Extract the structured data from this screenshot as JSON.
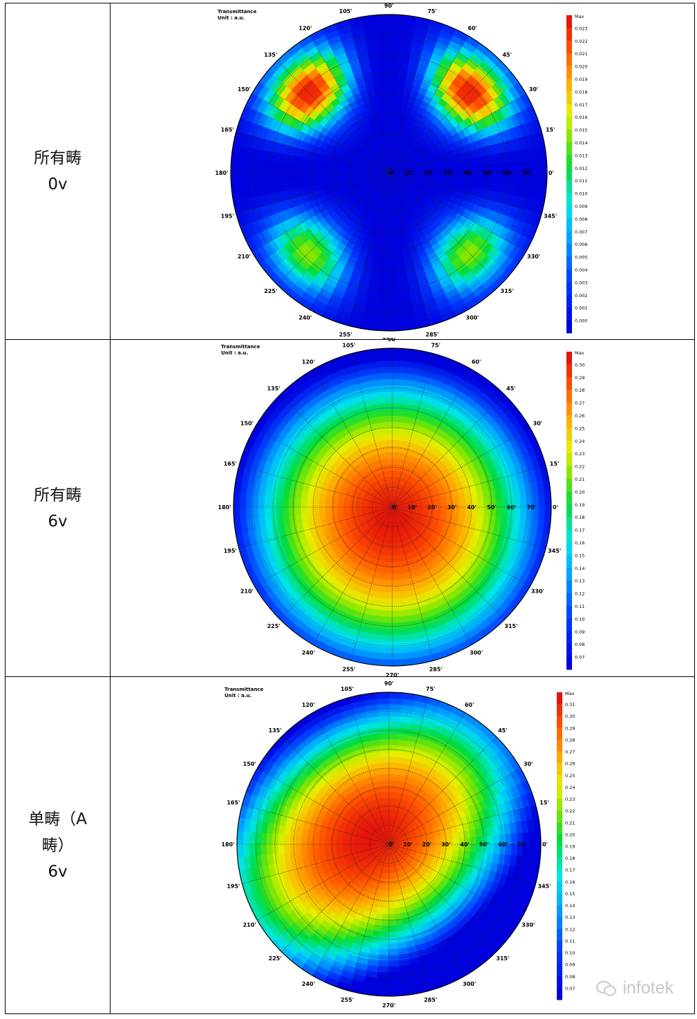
{
  "rows": [
    {
      "label_line1": "所有畴",
      "label_line2": "0v",
      "label_line3": "",
      "plot": {
        "title": "Transmittance",
        "unit": "Unit : a.u.",
        "legend_top": "Max",
        "legend_values": [
          "0.023",
          "0.022",
          "0.021",
          "0.020",
          "0.019",
          "0.018",
          "0.017",
          "0.016",
          "0.015",
          "0.014",
          "0.013",
          "0.012",
          "0.011",
          "0.010",
          "0.009",
          "0.008",
          "0.007",
          "0.006",
          "0.005",
          "0.004",
          "0.003",
          "0.002",
          "0.001",
          "0.000"
        ],
        "pattern": "four-lobe",
        "peak_fraction": 0.97
      }
    },
    {
      "label_line1": "所有畴",
      "label_line2": "6v",
      "label_line3": "",
      "plot": {
        "title": "Transmittance",
        "unit": "Unit : a.u.",
        "legend_top": "Max",
        "legend_values": [
          "0.30",
          "0.29",
          "0.28",
          "0.27",
          "0.26",
          "0.25",
          "0.24",
          "0.23",
          "0.22",
          "0.21",
          "0.20",
          "0.19",
          "0.18",
          "0.17",
          "0.16",
          "0.15",
          "0.14",
          "0.13",
          "0.12",
          "0.11",
          "0.10",
          "0.09",
          "0.08",
          "0.07"
        ],
        "pattern": "centered",
        "peak_fraction": 1.0
      }
    },
    {
      "label_line1": "单畴（A",
      "label_line2": "畴）",
      "label_line3": "6v",
      "plot": {
        "title": "Transmittance",
        "unit": "Unit : a.u.",
        "legend_top": "Max",
        "legend_values": [
          "0.31",
          "0.30",
          "0.29",
          "0.28",
          "0.27",
          "0.26",
          "0.25",
          "0.24",
          "0.23",
          "0.22",
          "0.21",
          "0.20",
          "0.19",
          "0.18",
          "0.17",
          "0.16",
          "0.15",
          "0.14",
          "0.13",
          "0.12",
          "0.11",
          "0.10",
          "0.09",
          "0.08",
          "0.07"
        ],
        "pattern": "offset",
        "peak_fraction": 1.0
      }
    }
  ],
  "azimuth_labels": [
    "0'",
    "15'",
    "30'",
    "45'",
    "60'",
    "75'",
    "90'",
    "105'",
    "120'",
    "135'",
    "150'",
    "165'",
    "180'",
    "195'",
    "210'",
    "225'",
    "240'",
    "255'",
    "270'",
    "285'",
    "300'",
    "315'",
    "330'",
    "345'"
  ],
  "polar_labels": [
    "0'",
    "10'",
    "20'",
    "30'",
    "40'",
    "50'",
    "60'",
    "70'"
  ],
  "watermark": "infotek"
}
